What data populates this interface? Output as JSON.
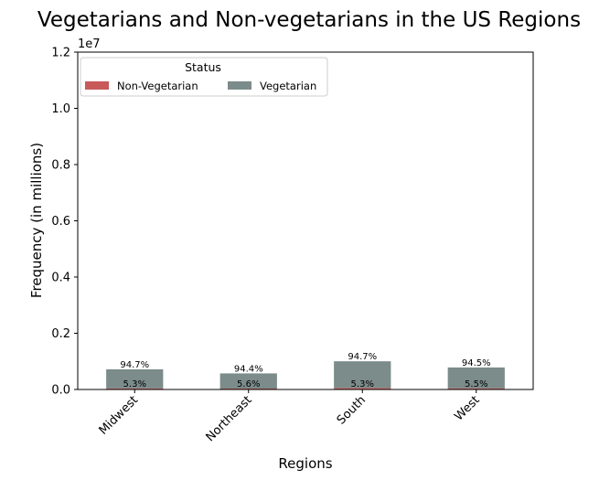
{
  "chart_data": {
    "type": "bar",
    "stacked": true,
    "title": "Vegetarians and Non-vegetarians in the US Regions",
    "xlabel": "Regions",
    "ylabel": "Frequency (in millions)",
    "y_offset_label": "1e7",
    "ylim": [
      0,
      12000000
    ],
    "y_ticks": [
      0,
      2000000,
      4000000,
      6000000,
      8000000,
      10000000,
      12000000
    ],
    "y_tick_labels": [
      "0.0",
      "0.2",
      "0.4",
      "0.6",
      "0.8",
      "1.0",
      "1.2"
    ],
    "categories": [
      "Midwest",
      "Northeast",
      "South",
      "West"
    ],
    "series": [
      {
        "name": "Non-Vegetarian",
        "color": "#c85a5a",
        "values": [
          38000,
          32000,
          53000,
          43000
        ],
        "labels": [
          "5.3%",
          "5.6%",
          "5.3%",
          "5.5%"
        ]
      },
      {
        "name": "Vegetarian",
        "color": "#7b8c8a",
        "values": [
          680000,
          540000,
          950000,
          740000
        ],
        "labels": [
          "94.7%",
          "94.4%",
          "94.7%",
          "94.5%"
        ]
      }
    ],
    "legend": {
      "title": "Status",
      "placement": "top-left",
      "columns": 2
    },
    "grid": false
  }
}
